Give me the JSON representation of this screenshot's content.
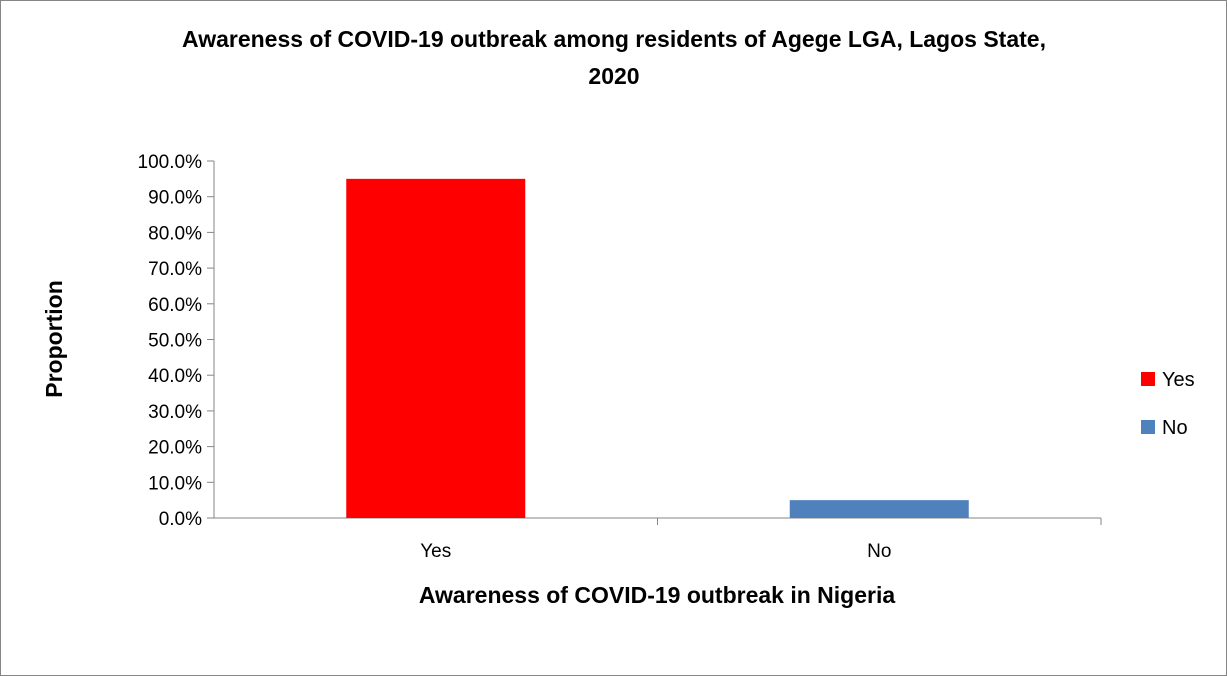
{
  "chart_data": {
    "type": "bar",
    "title_lines": [
      "Awareness of COVID-19 outbreak among residents of Agege LGA, Lagos State,",
      "2020"
    ],
    "xlabel": "Awareness of COVID-19 outbreak in Nigeria",
    "ylabel": "Proportion",
    "categories": [
      "Yes",
      "No"
    ],
    "values": [
      95.0,
      5.0
    ],
    "colors": [
      "#ff0000",
      "#4f81bd"
    ],
    "ylim": [
      0,
      100
    ],
    "y_ticks": [
      0,
      10,
      20,
      30,
      40,
      50,
      60,
      70,
      80,
      90,
      100
    ],
    "y_tick_labels": [
      "0.0%",
      "10.0%",
      "20.0%",
      "30.0%",
      "40.0%",
      "50.0%",
      "60.0%",
      "70.0%",
      "80.0%",
      "90.0%",
      "100.0%"
    ],
    "grid": false,
    "legend": {
      "placement": "right",
      "entries": [
        {
          "label": "Yes",
          "color": "#ff0000"
        },
        {
          "label": "No",
          "color": "#4f81bd"
        }
      ]
    }
  }
}
